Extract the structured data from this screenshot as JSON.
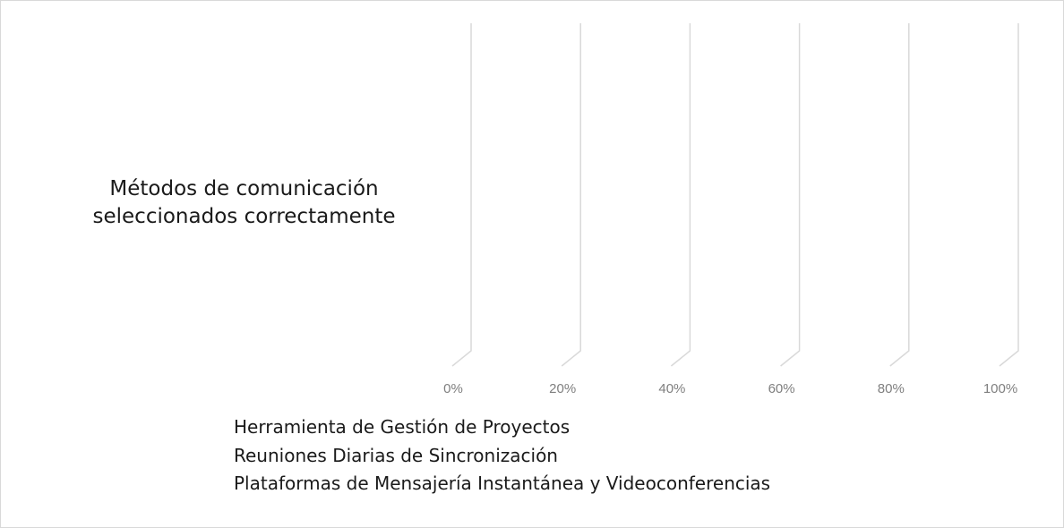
{
  "chart_data": {
    "type": "bar",
    "orientation": "horizontal",
    "three_d": true,
    "categories": [
      "Métodos de comunicación seleccionados correctamente"
    ],
    "category_label_lines": [
      "Métodos de comunicación",
      "seleccionados correctamente"
    ],
    "series": [
      {
        "name": "Herramienta de Gestión de Proyectos",
        "values": [
          0
        ]
      },
      {
        "name": "Reuniones Diarias de Sincronización",
        "values": [
          0
        ]
      },
      {
        "name": "Plataformas de Mensajería Instantánea y Videoconferencias",
        "values": [
          0
        ]
      }
    ],
    "xlim": [
      0,
      100
    ],
    "x_ticks": [
      0,
      20,
      40,
      60,
      80,
      100
    ],
    "x_tick_labels": [
      "0%",
      "20%",
      "40%",
      "60%",
      "80%",
      "100%"
    ],
    "grid": true,
    "legend_position": "bottom",
    "colors": {
      "gridline": "#d9d9d9",
      "tick_text": "#7f7f7f",
      "text": "#1a1a1a",
      "border": "#d9d9d9"
    }
  }
}
